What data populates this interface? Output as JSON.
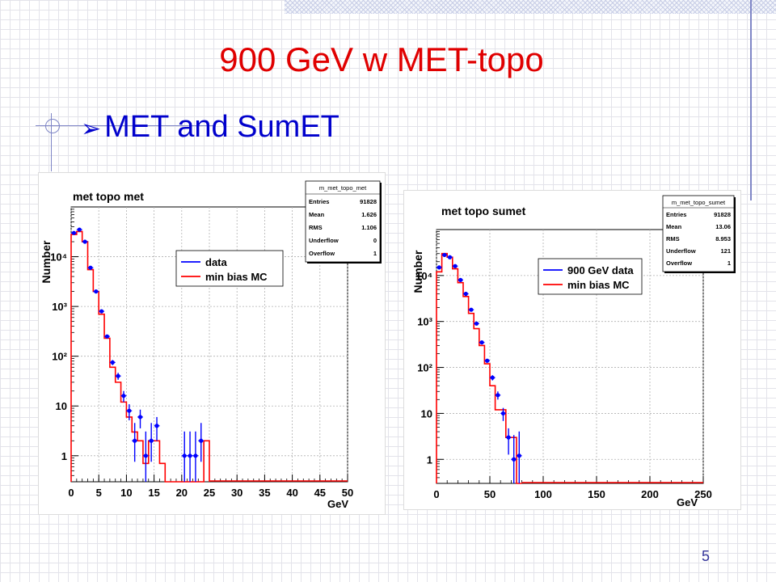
{
  "slide": {
    "title": "900 GeV w MET-topo",
    "bullet_marker": "➢",
    "bullet": "MET and SumET",
    "page_number": "5"
  },
  "chart_data": [
    {
      "type": "line",
      "title": "met topo met",
      "xlabel": "GeV",
      "ylabel": "Number",
      "xlim": [
        0,
        50
      ],
      "ylim": [
        0.3,
        100000
      ],
      "y_scale": "log",
      "grid": true,
      "x_ticks": [
        0,
        5,
        10,
        15,
        20,
        25,
        30,
        35,
        40,
        45,
        50
      ],
      "y_ticks": [
        {
          "value": 1,
          "label": "1"
        },
        {
          "value": 10,
          "label": "10"
        },
        {
          "value": 100,
          "label": "10²"
        },
        {
          "value": 1000,
          "label": "10³"
        },
        {
          "value": 10000,
          "label": "10⁴"
        }
      ],
      "legend": {
        "position": "top-center",
        "entries": [
          "data",
          "min bias MC"
        ]
      },
      "colors": {
        "data": "#0000ff",
        "mc": "#ff0000"
      },
      "stats": {
        "name": "m_met_topo_met",
        "rows": [
          {
            "label": "Entries",
            "value": "91828"
          },
          {
            "label": "Mean",
            "value": "1.626"
          },
          {
            "label": "RMS",
            "value": "1.106"
          },
          {
            "label": "Underflow",
            "value": "0"
          },
          {
            "label": "Overflow",
            "value": "1"
          }
        ]
      },
      "series": [
        {
          "name": "data",
          "style": "points",
          "x": [
            0.5,
            1.5,
            2.5,
            3.5,
            4.5,
            5.5,
            6.5,
            7.5,
            8.5,
            9.5,
            10.5,
            11.5,
            12.5,
            13.5,
            14.5,
            15.5,
            20.5,
            21.5,
            22.5,
            23.5
          ],
          "y": [
            30000,
            35000,
            20000,
            6000,
            2000,
            800,
            250,
            75,
            40,
            16,
            8,
            2,
            6,
            1,
            2,
            4,
            1,
            1,
            1,
            2
          ]
        },
        {
          "name": "min bias MC",
          "style": "step",
          "edges": [
            0,
            1,
            2,
            3,
            4,
            5,
            6,
            7,
            8,
            9,
            10,
            11,
            12,
            13,
            14,
            15,
            16,
            17,
            18,
            19,
            20,
            21,
            22,
            23,
            24,
            25
          ],
          "y": [
            28000,
            32000,
            20000,
            5500,
            2000,
            700,
            230,
            60,
            30,
            12,
            6,
            3,
            2,
            0.7,
            2,
            2,
            0.7,
            0.3,
            0.3,
            0.3,
            0.3,
            0.3,
            0.3,
            0.3,
            2
          ]
        }
      ]
    },
    {
      "type": "line",
      "title": "met topo sumet",
      "xlabel": "GeV",
      "ylabel": "Number",
      "xlim": [
        0,
        250
      ],
      "ylim": [
        0.3,
        100000
      ],
      "y_scale": "log",
      "grid": true,
      "x_ticks": [
        0,
        50,
        100,
        150,
        200,
        250
      ],
      "y_ticks": [
        {
          "value": 1,
          "label": "1"
        },
        {
          "value": 10,
          "label": "10"
        },
        {
          "value": 100,
          "label": "10²"
        },
        {
          "value": 1000,
          "label": "10³"
        },
        {
          "value": 10000,
          "label": "10⁴"
        }
      ],
      "legend": {
        "position": "top-center",
        "entries": [
          "900 GeV data",
          "min bias MC"
        ]
      },
      "colors": {
        "data": "#0000ff",
        "mc": "#ff0000"
      },
      "stats": {
        "name": "m_met_topo_sumet",
        "rows": [
          {
            "label": "Entries",
            "value": "91828"
          },
          {
            "label": "Mean",
            "value": "13.06"
          },
          {
            "label": "RMS",
            "value": "8.953"
          },
          {
            "label": "Underflow",
            "value": "121"
          },
          {
            "label": "Overflow",
            "value": "1"
          }
        ]
      },
      "series": [
        {
          "name": "900 GeV data",
          "style": "points",
          "x": [
            2.5,
            7.5,
            12.5,
            17.5,
            22.5,
            27.5,
            32.5,
            37.5,
            42.5,
            47.5,
            52.5,
            57.5,
            62.5,
            67.5,
            72.5,
            77.5
          ],
          "y": [
            15000,
            28000,
            25000,
            16000,
            8000,
            4000,
            1800,
            900,
            350,
            140,
            60,
            25,
            10,
            3,
            1,
            1.2
          ]
        },
        {
          "name": "min bias MC",
          "style": "step",
          "edges": [
            0,
            5,
            10,
            15,
            20,
            25,
            30,
            35,
            40,
            45,
            50,
            55,
            60,
            65,
            70,
            75,
            80
          ],
          "y": [
            12000,
            30000,
            25000,
            14000,
            7000,
            3500,
            1500,
            700,
            300,
            120,
            40,
            12,
            12,
            3,
            3,
            0.3
          ]
        }
      ]
    }
  ]
}
